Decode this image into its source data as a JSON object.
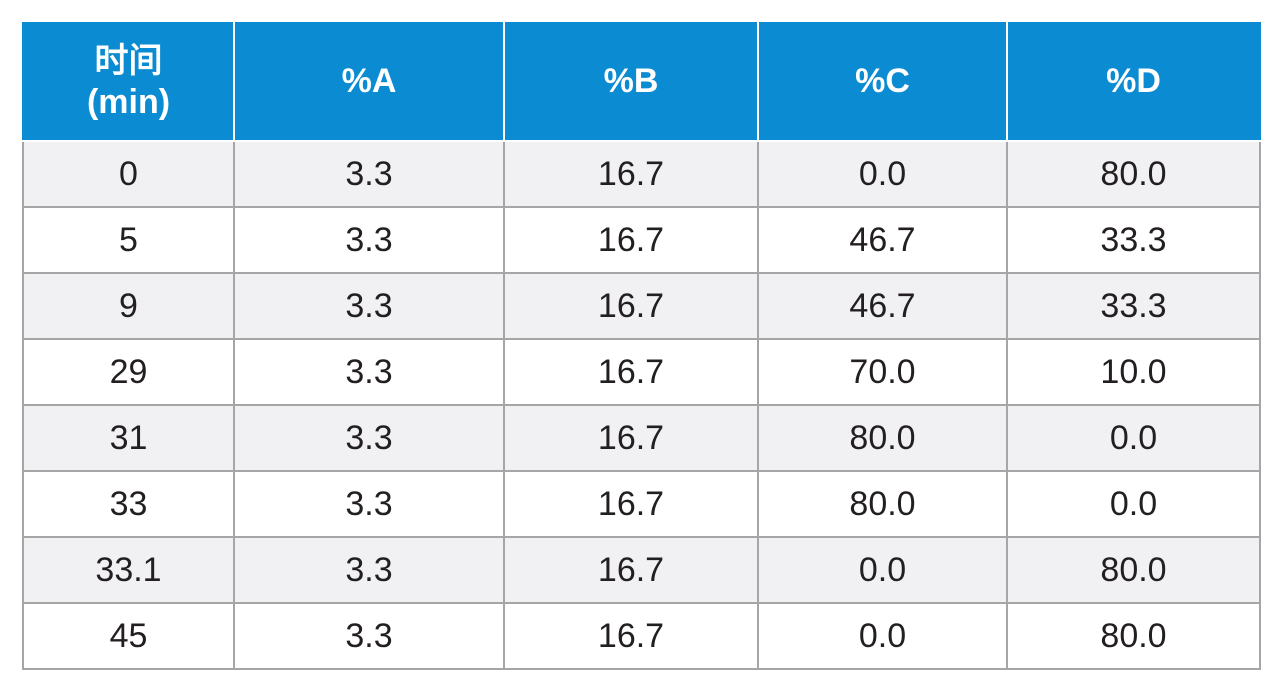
{
  "table": {
    "header": {
      "time_line1": "时间",
      "time_line2": "(min)",
      "col_a": "%A",
      "col_b": "%B",
      "col_c": "%C",
      "col_d": "%D"
    },
    "rows": [
      [
        "0",
        "3.3",
        "16.7",
        "0.0",
        "80.0"
      ],
      [
        "5",
        "3.3",
        "16.7",
        "46.7",
        "33.3"
      ],
      [
        "9",
        "3.3",
        "16.7",
        "46.7",
        "33.3"
      ],
      [
        "29",
        "3.3",
        "16.7",
        "70.0",
        "10.0"
      ],
      [
        "31",
        "3.3",
        "16.7",
        "80.0",
        "0.0"
      ],
      [
        "33",
        "3.3",
        "16.7",
        "80.0",
        "0.0"
      ],
      [
        "33.1",
        "3.3",
        "16.7",
        "0.0",
        "80.0"
      ],
      [
        "45",
        "3.3",
        "16.7",
        "0.0",
        "80.0"
      ]
    ]
  },
  "colors": {
    "header_bg": "#0a8bd2",
    "header_text": "#ffffff",
    "row_shade": "#f1f1f3",
    "grid_line": "#a6a6a6"
  }
}
